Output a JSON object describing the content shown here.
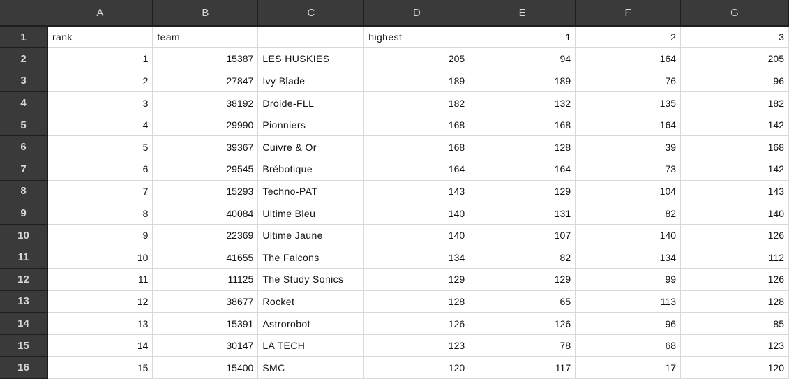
{
  "columns": [
    "A",
    "B",
    "C",
    "D",
    "E",
    "F",
    "G"
  ],
  "row_numbers": [
    "1",
    "2",
    "3",
    "4",
    "5",
    "6",
    "7",
    "8",
    "9",
    "10",
    "11",
    "12",
    "13",
    "14",
    "15",
    "16"
  ],
  "rows": [
    [
      "rank",
      "team",
      "",
      "highest",
      "1",
      "2",
      "3"
    ],
    [
      "1",
      "15387",
      "LES HUSKIES",
      "205",
      "94",
      "164",
      "205"
    ],
    [
      "2",
      "27847",
      "Ivy Blade",
      "189",
      "189",
      "76",
      "96"
    ],
    [
      "3",
      "38192",
      "Droide-FLL",
      "182",
      "132",
      "135",
      "182"
    ],
    [
      "4",
      "29990",
      "Pionniers",
      "168",
      "168",
      "164",
      "142"
    ],
    [
      "5",
      "39367",
      "Cuivre & Or",
      "168",
      "128",
      "39",
      "168"
    ],
    [
      "6",
      "29545",
      "Brébotique",
      "164",
      "164",
      "73",
      "142"
    ],
    [
      "7",
      "15293",
      "Techno-PAT",
      "143",
      "129",
      "104",
      "143"
    ],
    [
      "8",
      "40084",
      "Ultime Bleu",
      "140",
      "131",
      "82",
      "140"
    ],
    [
      "9",
      "22369",
      "Ultime Jaune",
      "140",
      "107",
      "140",
      "126"
    ],
    [
      "10",
      "41655",
      "The Falcons",
      "134",
      "82",
      "134",
      "112"
    ],
    [
      "11",
      "11125",
      "The Study Sonics",
      "129",
      "129",
      "99",
      "126"
    ],
    [
      "12",
      "38677",
      "Rocket",
      "128",
      "65",
      "113",
      "128"
    ],
    [
      "13",
      "15391",
      "Astrorobot",
      "126",
      "126",
      "96",
      "85"
    ],
    [
      "14",
      "30147",
      "LA TECH",
      "123",
      "78",
      "68",
      "123"
    ],
    [
      "15",
      "15400",
      "SMC",
      "120",
      "117",
      "17",
      "120"
    ]
  ]
}
